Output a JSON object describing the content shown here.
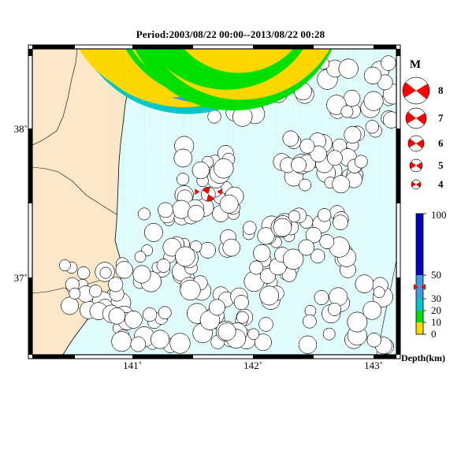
{
  "title": "Period:2003/08/22 00:00--2013/08/22 00:28",
  "map": {
    "lon_range": [
      140.25,
      143.25
    ],
    "lat_range": [
      36.5,
      38.5
    ],
    "x_ticks": [
      {
        "value": 141,
        "label": "141˚"
      },
      {
        "value": 142,
        "label": "142˚"
      },
      {
        "value": 143,
        "label": "143˚"
      }
    ],
    "y_ticks": [
      {
        "value": 38,
        "label": "38˚"
      },
      {
        "value": 37,
        "label": "37˚"
      }
    ],
    "colors": {
      "land": "#fce8c8",
      "sea": "#e0fcfc",
      "frame": "#000000"
    }
  },
  "magnitude_legend": {
    "title": "M",
    "items": [
      {
        "label": "8",
        "magnitude": 8
      },
      {
        "label": "7",
        "magnitude": 7
      },
      {
        "label": "6",
        "magnitude": 6
      },
      {
        "label": "5",
        "magnitude": 5
      },
      {
        "label": "4",
        "magnitude": 4
      }
    ],
    "color": "#ff0000"
  },
  "depth_scale": {
    "label": "Depth(km)",
    "ticks": [
      {
        "value": 100,
        "label": "100"
      },
      {
        "value": 50,
        "label": "50"
      },
      {
        "value": 30,
        "label": "30"
      },
      {
        "value": 20,
        "label": "20"
      },
      {
        "value": 10,
        "label": "10"
      },
      {
        "value": 0,
        "label": "0"
      }
    ],
    "bands": [
      {
        "from": 0,
        "to": 10,
        "color": "#ffd700"
      },
      {
        "from": 10,
        "to": 20,
        "color": "#00e000"
      },
      {
        "from": 20,
        "to": 30,
        "color": "#00c8c8"
      },
      {
        "from": 30,
        "to": 50,
        "color": "#3c9be0"
      },
      {
        "from": 50,
        "to": 100,
        "color": "#0000c0"
      }
    ],
    "marker_depth": 40
  },
  "mainshock": {
    "lon": 141.7,
    "lat": 37.55,
    "color": "#ff0000",
    "magnitude": 5.5
  }
}
